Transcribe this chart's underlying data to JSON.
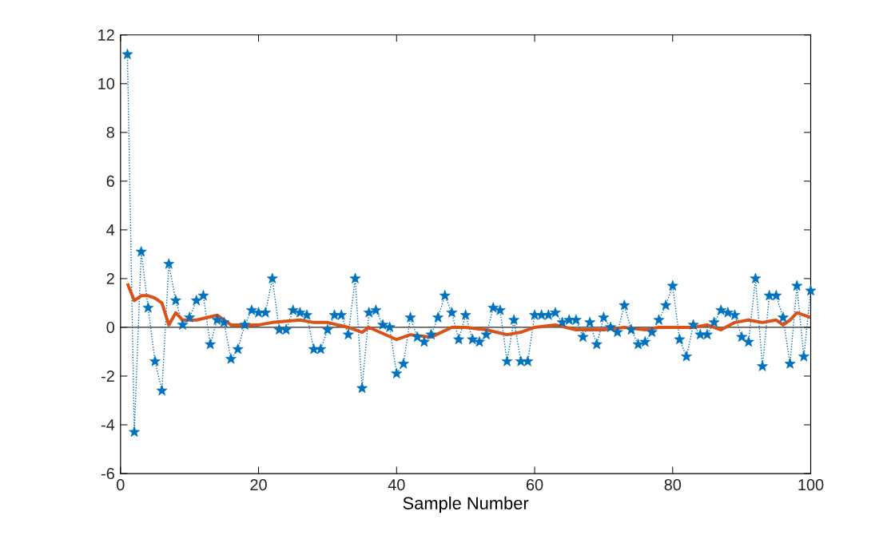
{
  "chart_data": {
    "type": "line",
    "xlabel": "Sample Number",
    "xlim": [
      0,
      100
    ],
    "xticks": [
      0,
      20,
      40,
      60,
      80,
      100
    ],
    "ylim": [
      -6,
      12
    ],
    "yticks": [
      -6,
      -4,
      -2,
      0,
      2,
      4,
      6,
      8,
      10,
      12
    ],
    "grid": false,
    "ref_lines": [
      {
        "axis": "y",
        "value": 0,
        "color": "#262626"
      }
    ],
    "series": [
      {
        "color": "#0072bd",
        "marker": "star",
        "line_style": "dotted",
        "x": [
          1,
          2,
          3,
          4,
          5,
          6,
          7,
          8,
          9,
          10,
          11,
          12,
          13,
          14,
          15,
          16,
          17,
          18,
          19,
          20,
          21,
          22,
          23,
          24,
          25,
          26,
          27,
          28,
          29,
          30,
          31,
          32,
          33,
          34,
          35,
          36,
          37,
          38,
          39,
          40,
          41,
          42,
          43,
          44,
          45,
          46,
          47,
          48,
          49,
          50,
          51,
          52,
          53,
          54,
          55,
          56,
          57,
          58,
          59,
          60,
          61,
          62,
          63,
          64,
          65,
          66,
          67,
          68,
          69,
          70,
          71,
          72,
          73,
          74,
          75,
          76,
          77,
          78,
          79,
          80,
          81,
          82,
          83,
          84,
          85,
          86,
          87,
          88,
          89,
          90,
          91,
          92,
          93,
          94,
          95,
          96,
          97,
          98,
          99,
          100
        ],
        "values": [
          11.2,
          -4.3,
          3.1,
          0.8,
          -1.4,
          -2.6,
          2.6,
          1.1,
          0.1,
          0.4,
          1.1,
          1.3,
          -0.7,
          0.3,
          0.2,
          -1.3,
          -0.9,
          0.1,
          0.7,
          0.6,
          0.6,
          2.0,
          -0.1,
          -0.1,
          0.7,
          0.6,
          0.5,
          -0.9,
          -0.9,
          -0.1,
          0.5,
          0.5,
          -0.3,
          2.0,
          -2.5,
          0.6,
          0.7,
          0.1,
          0.0,
          -1.9,
          -1.5,
          0.4,
          -0.4,
          -0.6,
          -0.3,
          0.4,
          1.3,
          0.6,
          -0.5,
          0.5,
          -0.5,
          -0.6,
          -0.3,
          0.8,
          0.7,
          -1.4,
          0.3,
          -1.4,
          -1.4,
          0.5,
          0.5,
          0.5,
          0.6,
          0.2,
          0.3,
          0.3,
          -0.4,
          0.2,
          -0.7,
          0.4,
          0.0,
          -0.2,
          0.9,
          -0.1,
          -0.7,
          -0.6,
          -0.2,
          0.3,
          0.9,
          1.7,
          -0.5,
          -1.2,
          0.1,
          -0.3,
          -0.3,
          0.2,
          0.7,
          0.6,
          0.5,
          -0.4,
          -0.6,
          2.0,
          -1.6,
          1.3,
          1.3,
          0.4,
          -1.5,
          1.7,
          -1.2,
          1.5
        ]
      },
      {
        "color": "#d95319",
        "marker": "none",
        "line_style": "solid",
        "x": [
          1,
          2,
          3,
          4,
          5,
          6,
          7,
          8,
          9,
          11,
          14,
          16,
          20,
          22,
          26,
          28,
          30,
          33,
          35,
          36,
          40,
          42,
          45,
          48,
          50,
          53,
          56,
          58,
          60,
          63,
          66,
          70,
          73,
          76,
          78,
          80,
          83,
          85,
          87,
          89,
          91,
          93,
          95,
          96,
          97,
          98,
          99,
          100
        ],
        "values": [
          1.8,
          1.1,
          1.3,
          1.3,
          1.2,
          1.0,
          0.1,
          0.6,
          0.3,
          0.3,
          0.5,
          0.1,
          0.1,
          0.2,
          0.3,
          0.2,
          0.2,
          0.0,
          -0.2,
          0.0,
          -0.5,
          -0.3,
          -0.4,
          0.0,
          0.0,
          -0.1,
          -0.3,
          -0.2,
          0.0,
          0.1,
          -0.1,
          -0.1,
          0.0,
          -0.1,
          0.0,
          0.0,
          0.0,
          0.1,
          -0.1,
          0.2,
          0.3,
          0.2,
          0.3,
          0.1,
          0.3,
          0.6,
          0.5,
          0.4
        ]
      }
    ]
  }
}
